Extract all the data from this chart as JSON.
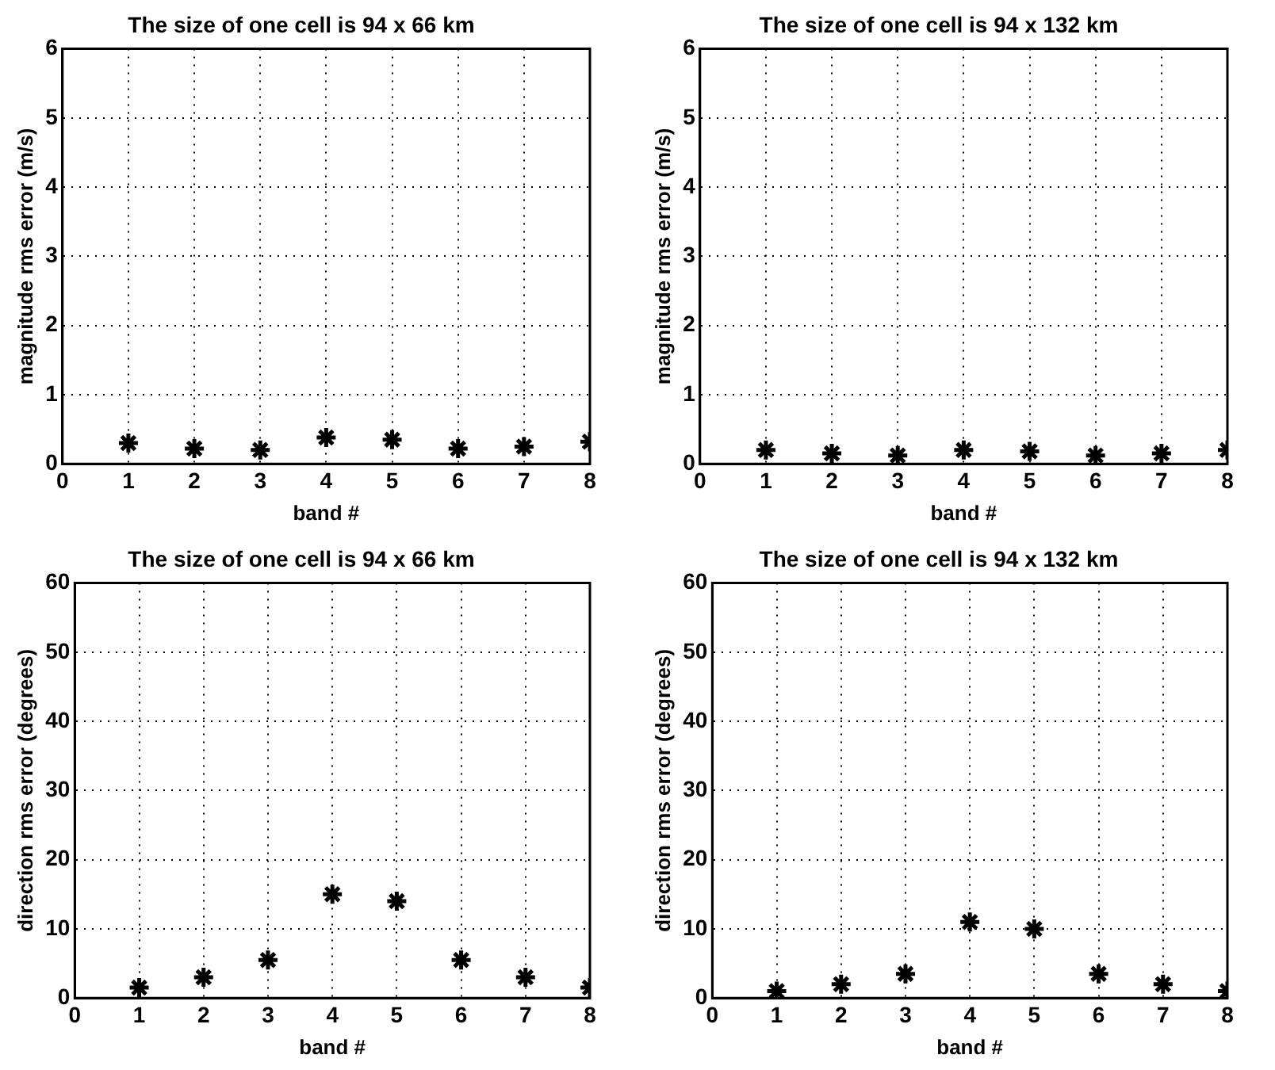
{
  "chart_data": [
    {
      "type": "scatter",
      "title": "The size of one cell is 94 x 66 km",
      "xlabel": "band #",
      "ylabel": "magnitude rms error (m/s)",
      "x": [
        1,
        2,
        3,
        4,
        5,
        6,
        7,
        8
      ],
      "values": [
        0.3,
        0.22,
        0.2,
        0.38,
        0.35,
        0.22,
        0.25,
        0.32
      ],
      "color": "#000000",
      "xlim": [
        0,
        8
      ],
      "xticks": [
        0,
        1,
        2,
        3,
        4,
        5,
        6,
        7,
        8
      ],
      "ylim": [
        0,
        6
      ],
      "yticks": [
        0,
        1,
        2,
        3,
        4,
        5,
        6
      ],
      "grid": true,
      "marker": "cross"
    },
    {
      "type": "scatter",
      "title": "The size of one cell is 94 x 132 km",
      "xlabel": "band #",
      "ylabel": "magnitude rms error (m/s)",
      "x": [
        1,
        2,
        3,
        4,
        5,
        6,
        7,
        8
      ],
      "values": [
        0.2,
        0.15,
        0.12,
        0.2,
        0.18,
        0.12,
        0.15,
        0.2
      ],
      "color": "#000000",
      "xlim": [
        0,
        8
      ],
      "xticks": [
        0,
        1,
        2,
        3,
        4,
        5,
        6,
        7,
        8
      ],
      "ylim": [
        0,
        6
      ],
      "yticks": [
        0,
        1,
        2,
        3,
        4,
        5,
        6
      ],
      "grid": true,
      "marker": "cross"
    },
    {
      "type": "scatter",
      "title": "The size of one cell is 94 x 66 km",
      "xlabel": "band #",
      "ylabel": "direction rms error (degrees)",
      "x": [
        1,
        2,
        3,
        4,
        5,
        6,
        7,
        8
      ],
      "values": [
        1.5,
        3,
        5.5,
        15,
        14,
        5.5,
        3,
        1.5
      ],
      "color": "#000000",
      "xlim": [
        0,
        8
      ],
      "xticks": [
        0,
        1,
        2,
        3,
        4,
        5,
        6,
        7,
        8
      ],
      "ylim": [
        0,
        60
      ],
      "yticks": [
        0,
        10,
        20,
        30,
        40,
        50,
        60
      ],
      "grid": true,
      "marker": "cross"
    },
    {
      "type": "scatter",
      "title": "The size of one cell is 94 x 132 km",
      "xlabel": "band #",
      "ylabel": "direction rms error (degrees)",
      "x": [
        1,
        2,
        3,
        4,
        5,
        6,
        7,
        8
      ],
      "values": [
        1,
        2,
        3.5,
        11,
        10,
        3.5,
        2,
        1
      ],
      "color": "#000000",
      "xlim": [
        0,
        8
      ],
      "xticks": [
        0,
        1,
        2,
        3,
        4,
        5,
        6,
        7,
        8
      ],
      "ylim": [
        0,
        60
      ],
      "yticks": [
        0,
        10,
        20,
        30,
        40,
        50,
        60
      ],
      "grid": true,
      "marker": "cross"
    }
  ]
}
